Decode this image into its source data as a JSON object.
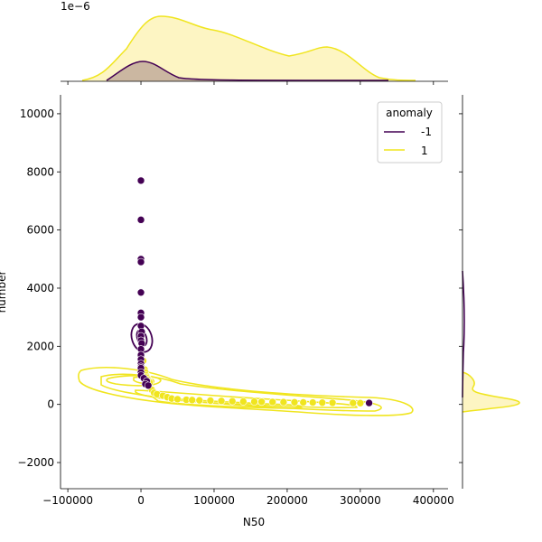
{
  "chart_data": {
    "type": "scatter",
    "subtype": "jointplot-with-kde",
    "title": "",
    "xlabel": "N50",
    "ylabel": "number",
    "xlim": [
      -110000,
      420000
    ],
    "ylim": [
      -2900,
      10650
    ],
    "xticks": [
      -100000,
      0,
      100000,
      200000,
      300000,
      400000
    ],
    "xtick_labels": [
      "−100000",
      "0",
      "100000",
      "200000",
      "300000",
      "400000"
    ],
    "yticks": [
      -2000,
      0,
      2000,
      4000,
      6000,
      8000,
      10000
    ],
    "ytick_labels": [
      "−2000",
      "0",
      "2000",
      "4000",
      "6000",
      "8000",
      "10000"
    ],
    "top_marginal_offset_label": "1e−6",
    "grid": false,
    "legend": {
      "title": "anomaly",
      "placement": "top-right",
      "entries": [
        "-1",
        "1"
      ]
    },
    "hue_colors": {
      "-1": "#440154",
      "1": "#f0e51f"
    },
    "fill_colors": {
      "-1": "#cbb7a1",
      "1": "#fdf5c3"
    },
    "series": [
      {
        "name": "-1",
        "points": [
          [
            0,
            7700
          ],
          [
            0,
            6350
          ],
          [
            0,
            5000
          ],
          [
            0,
            4900
          ],
          [
            0,
            3850
          ],
          [
            0,
            3150
          ],
          [
            0,
            3000
          ],
          [
            0,
            2700
          ],
          [
            1000,
            2500
          ],
          [
            0,
            2350
          ],
          [
            0,
            2200
          ],
          [
            1000,
            2100
          ],
          [
            0,
            1900
          ],
          [
            0,
            1700
          ],
          [
            0,
            1550
          ],
          [
            0,
            1400
          ],
          [
            0,
            1300
          ],
          [
            0,
            1250
          ],
          [
            0,
            1100
          ],
          [
            0,
            1000
          ],
          [
            4000,
            900
          ],
          [
            8000,
            800
          ],
          [
            6000,
            700
          ],
          [
            10000,
            650
          ],
          [
            312000,
            50
          ]
        ]
      },
      {
        "name": "1",
        "points": [
          [
            0,
            1650
          ],
          [
            3000,
            1500
          ],
          [
            5000,
            1200
          ],
          [
            6000,
            1100
          ],
          [
            7000,
            1000
          ],
          [
            8000,
            950
          ],
          [
            9000,
            900
          ],
          [
            10000,
            850
          ],
          [
            11000,
            800
          ],
          [
            12000,
            750
          ],
          [
            15000,
            500
          ],
          [
            18000,
            400
          ],
          [
            22000,
            350
          ],
          [
            30000,
            300
          ],
          [
            36000,
            250
          ],
          [
            42000,
            200
          ],
          [
            50000,
            180
          ],
          [
            62000,
            160
          ],
          [
            70000,
            150
          ],
          [
            80000,
            140
          ],
          [
            95000,
            130
          ],
          [
            110000,
            120
          ],
          [
            125000,
            110
          ],
          [
            140000,
            100
          ],
          [
            155000,
            95
          ],
          [
            165000,
            90
          ],
          [
            180000,
            85
          ],
          [
            195000,
            80
          ],
          [
            210000,
            75
          ],
          [
            222000,
            70
          ],
          [
            235000,
            65
          ],
          [
            248000,
            60
          ],
          [
            262000,
            55
          ],
          [
            290000,
            50
          ],
          [
            300000,
            45
          ]
        ]
      }
    ]
  }
}
